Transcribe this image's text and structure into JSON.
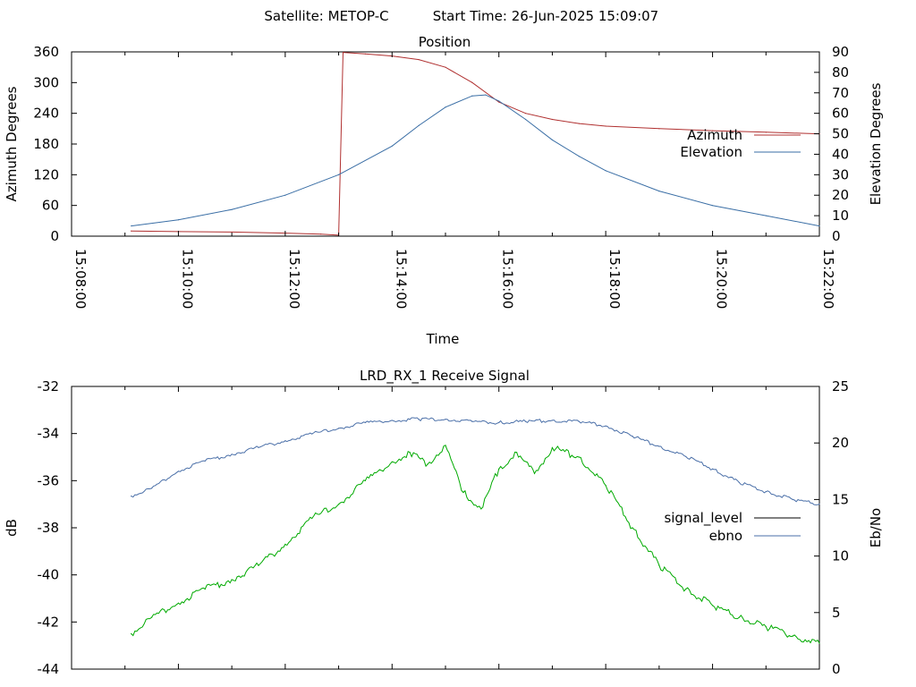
{
  "header": {
    "satellite": "Satellite: METOP-C",
    "start_time": "Start Time: 26-Jun-2025 15:09:07"
  },
  "colors": {
    "azimuth": "#b03030",
    "elevation": "#3a6ea5",
    "signal_level": "#00aa00",
    "ebno": "#4a6fa8",
    "legend_signal_level": "#000000",
    "legend_ebno": "#4a6fa8"
  },
  "chart_data": [
    {
      "type": "line",
      "title": "Position",
      "xlabel": "Time",
      "ylabel": "Azimuth Degrees",
      "y2label": "Elevation Degrees",
      "xlim": [
        "15:08:00",
        "15:22:00"
      ],
      "ylim": [
        0,
        360
      ],
      "y2lim": [
        0,
        90
      ],
      "x_ticks": [
        "15:08:00",
        "15:10:00",
        "15:12:00",
        "15:14:00",
        "15:16:00",
        "15:18:00",
        "15:20:00",
        "15:22:00"
      ],
      "y_ticks": [
        "0",
        "60",
        "120",
        "180",
        "240",
        "300",
        "360"
      ],
      "y2_ticks": [
        "0",
        "10",
        "20",
        "30",
        "40",
        "50",
        "60",
        "70",
        "80",
        "90"
      ],
      "legend_position": "right",
      "series": [
        {
          "name": "Azimuth",
          "axis": "y",
          "x": [
            "15:09:07",
            "15:10:00",
            "15:11:00",
            "15:12:00",
            "15:12:40",
            "15:13:00",
            "15:13:05",
            "15:13:30",
            "15:14:00",
            "15:14:30",
            "15:15:00",
            "15:15:30",
            "15:16:00",
            "15:16:30",
            "15:17:00",
            "15:17:30",
            "15:18:00",
            "15:19:00",
            "15:20:00",
            "15:21:00",
            "15:22:00"
          ],
          "values": [
            10,
            9,
            8,
            6,
            4,
            2,
            359,
            356,
            352,
            345,
            330,
            300,
            262,
            240,
            228,
            220,
            215,
            210,
            206,
            203,
            200
          ]
        },
        {
          "name": "Elevation",
          "axis": "y2",
          "x": [
            "15:09:07",
            "15:10:00",
            "15:11:00",
            "15:12:00",
            "15:13:00",
            "15:14:00",
            "15:14:30",
            "15:15:00",
            "15:15:30",
            "15:15:45",
            "15:16:00",
            "15:16:30",
            "15:17:00",
            "15:17:30",
            "15:18:00",
            "15:19:00",
            "15:20:00",
            "15:21:00",
            "15:22:00"
          ],
          "values": [
            5,
            8,
            13,
            20,
            30,
            44,
            54,
            63,
            68.5,
            69,
            66,
            57,
            47,
            39,
            32,
            22,
            15,
            10,
            5
          ]
        }
      ]
    },
    {
      "type": "line",
      "title": "LRD_RX_1 Receive Signal",
      "ylabel": "dB",
      "y2label": "Eb/No",
      "ylim": [
        -44,
        -32
      ],
      "y2lim": [
        0,
        25
      ],
      "xlim": [
        "15:08:00",
        "15:22:00"
      ],
      "y_ticks": [
        "-44",
        "-42",
        "-40",
        "-38",
        "-36",
        "-34",
        "-32"
      ],
      "y2_ticks": [
        "0",
        "5",
        "10",
        "15",
        "20",
        "25"
      ],
      "legend_position": "right",
      "series": [
        {
          "name": "signal_level",
          "axis": "y",
          "x": [
            "15:09:07",
            "15:09:30",
            "15:10:00",
            "15:10:30",
            "15:11:00",
            "15:11:30",
            "15:12:00",
            "15:12:30",
            "15:13:00",
            "15:13:30",
            "15:14:00",
            "15:14:20",
            "15:14:40",
            "15:15:00",
            "15:15:20",
            "15:15:40",
            "15:16:00",
            "15:16:20",
            "15:16:40",
            "15:17:00",
            "15:17:30",
            "15:18:00",
            "15:18:30",
            "15:19:00",
            "15:19:30",
            "15:20:00",
            "15:20:30",
            "15:21:00",
            "15:21:30",
            "15:22:00"
          ],
          "values": [
            -42.5,
            -41.8,
            -41.2,
            -40.6,
            -40.2,
            -39.6,
            -38.7,
            -37.6,
            -37.0,
            -36.0,
            -35.2,
            -34.8,
            -35.3,
            -34.5,
            -36.5,
            -37.2,
            -35.5,
            -34.8,
            -35.7,
            -34.6,
            -35.0,
            -36.2,
            -38.0,
            -39.6,
            -40.6,
            -41.3,
            -41.8,
            -42.2,
            -42.6,
            -42.9
          ]
        },
        {
          "name": "ebno",
          "axis": "y2",
          "x": [
            "15:09:07",
            "15:09:30",
            "15:10:00",
            "15:10:30",
            "15:11:00",
            "15:11:30",
            "15:12:00",
            "15:12:30",
            "15:13:00",
            "15:13:30",
            "15:14:00",
            "15:14:30",
            "15:15:00",
            "15:15:30",
            "15:16:00",
            "15:16:30",
            "15:17:00",
            "15:17:30",
            "15:18:00",
            "15:18:30",
            "15:19:00",
            "15:19:30",
            "15:20:00",
            "15:20:30",
            "15:21:00",
            "15:21:30",
            "15:22:00"
          ],
          "values": [
            15.3,
            16.0,
            17.5,
            18.4,
            19.0,
            19.6,
            20.2,
            20.8,
            21.3,
            21.8,
            22.0,
            22.1,
            22.1,
            21.9,
            21.8,
            21.9,
            22.0,
            21.9,
            21.5,
            20.6,
            19.7,
            18.8,
            17.7,
            16.5,
            15.7,
            15.0,
            14.6
          ]
        }
      ]
    }
  ]
}
